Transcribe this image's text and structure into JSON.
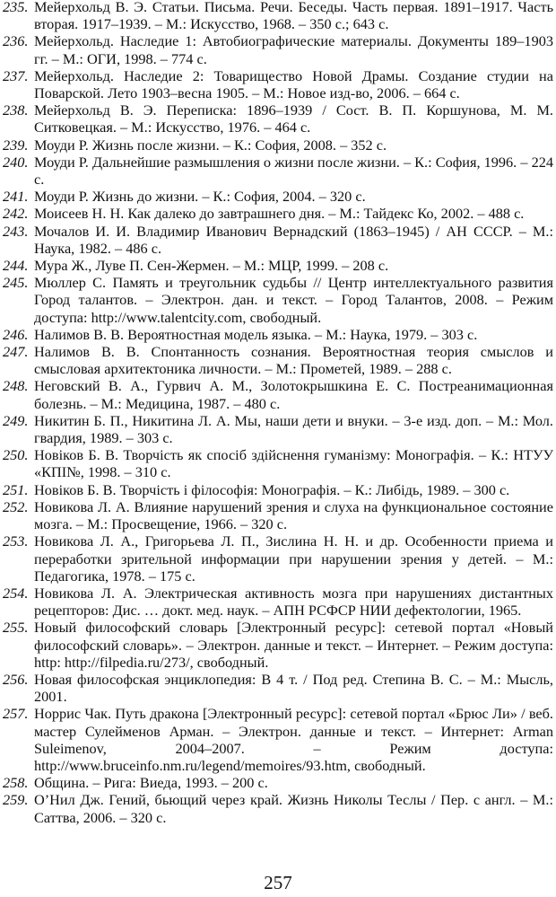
{
  "entries": [
    {
      "num": "235.",
      "text": "Мейерхольд В. Э. Статьи. Письма. Речи. Беседы. Часть первая. 1891–1917. Часть вторая. 1917–1939. – М.: Искусство, 1968. – 350 с.; 643 с."
    },
    {
      "num": "236.",
      "text": "Мейерхольд. Наследие 1: Автобиографические материалы. Документы 189–1903 гг. – М.: ОГИ, 1998. – 774 с."
    },
    {
      "num": "237.",
      "text": "Мейерхольд. Наследие 2: Товарищество Новой Драмы. Создание студии на Поварской. Лето 1903–весна 1905. – М.: Новое изд-во, 2006. – 664 с."
    },
    {
      "num": "238.",
      "text": "Мейерхольд В. Э. Переписка: 1896–1939 / Сост. В. П. Коршунова, М. М. Ситковецкая. – М.: Искусство, 1976. – 464 с."
    },
    {
      "num": "239.",
      "text": "Моуди Р. Жизнь после жизни. – К.: София, 2008. – 352 с."
    },
    {
      "num": "240.",
      "text": "Моуди Р. Дальнейшие размышления о жизни после жизни. – К.: София, 1996. – 224 с."
    },
    {
      "num": "241.",
      "text": "Моуди Р. Жизнь до жизни. – К.: София, 2004. – 320 с."
    },
    {
      "num": "242.",
      "text": "Моисеев Н. Н. Как далеко до завтрашнего дня. – М.: Тайдекс Ко, 2002. – 488 с."
    },
    {
      "num": "243.",
      "text": "Мочалов И. И. Владимир Иванович Вернадский (1863–1945) / АН СССР. – М.: Наука, 1982. – 486 с."
    },
    {
      "num": "244.",
      "text": "Мура Ж., Луве П. Сен-Жермен. – М.: МЦР, 1999. – 208 с."
    },
    {
      "num": "245.",
      "text": "Мюллер С. Память и треугольник судьбы // Центр интеллектуального развития Город талантов. – Электрон. дан. и текст. – Город Талантов, 2008. – Режим доступа: http://www.talentcity.com, свободный."
    },
    {
      "num": "246.",
      "text": "Налимов В. В. Вероятностная модель языка. – М.: Наука, 1979. – 303 с."
    },
    {
      "num": "247.",
      "text": "Налимов В. В. Спонтанность сознания. Вероятностная теория смыслов и смысловая архитектоника личности. – М.: Прометей, 1989. – 288 с."
    },
    {
      "num": "248.",
      "text": "Неговский В. А., Гурвич А. М., Золотокрышкина Е. С. Постреанимационная болезнь. – М.: Медицина, 1987. – 480 с."
    },
    {
      "num": "249.",
      "text": "Никитин Б. П., Никитина Л. А. Мы, наши дети и внуки. – 3-е изд. доп. – М.: Мол. гвардия, 1989. – 303 с."
    },
    {
      "num": "250.",
      "text": "Новіков Б. В. Творчість як спосіб здійснення гуманізму: Монографія. – К.: НТУУ «КПІ№, 1998. – 310 с."
    },
    {
      "num": "251.",
      "text": "Новіков Б. В. Творчість і філософія: Монографія. – К.: Либідь, 1989. – 300 с."
    },
    {
      "num": "252.",
      "text": "Новикова Л. А. Влияние нарушений зрения и слуха на функциональное состояние мозга. – М.: Просвещение, 1966. – 320 с."
    },
    {
      "num": "253.",
      "text": "Новикова Л. А., Григорьева Л. П., Зислина Н. Н. и др. Особенности приема и переработки зрительной информации при нарушении зрения у детей. – М.: Педагогика, 1978. – 175 с."
    },
    {
      "num": "254.",
      "text": "Новикова Л. А. Электрическая активность мозга при нарушениях дистантных рецепторов: Дис. … докт. мед. наук. – АПН РСФСР НИИ дефектологии, 1965."
    },
    {
      "num": "255.",
      "text": "Новый философский словарь [Электронный ресурс]: сетевой портал «Новый философский словарь». – Электрон. данные и текст. – Интернет. – Режим доступа: http: http://filpedia.ru/273/, свободный."
    },
    {
      "num": "256.",
      "text": "Новая философская энциклопедия: В 4 т. / Под ред. Степина В. С. – М.: Мысль, 2001."
    },
    {
      "num": "257.",
      "text": "Норрис Чак. Путь дракона [Электронный ресурс]: сетевой портал «Брюс Ли» / веб. мастер Сулейменов Арман. – Электрон. данные и текст. – Интернет: Arman Suleimenov, 2004–2007. – Режим доступа: http://www.bruceinfo.nm.ru/legend/memoires/93.htm, свободный."
    },
    {
      "num": "258.",
      "text": "Община. – Рига: Виеда, 1993. – 200 с."
    },
    {
      "num": "259.",
      "text": "О’Нил Дж. Гений, бьющий через край. Жизнь Николы Теслы / Пер. с англ. – М.: Саттва, 2006. – 320 с."
    }
  ],
  "page_number": "257"
}
